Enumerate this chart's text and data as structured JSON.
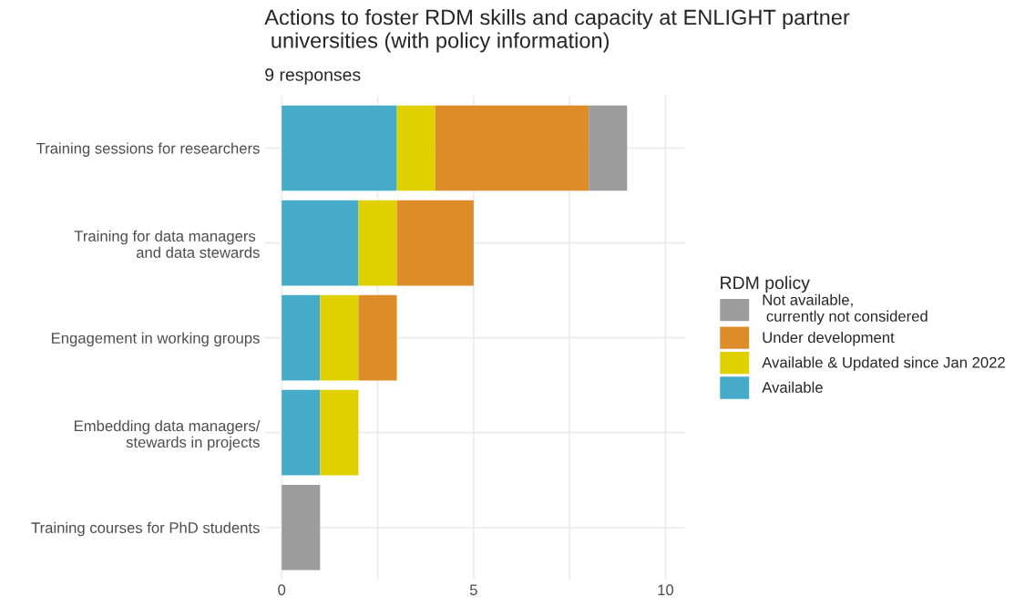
{
  "chart_data": {
    "type": "bar",
    "orientation": "horizontal",
    "stacked": true,
    "title": "Actions to foster RDM skills and capacity at ENLIGHT partner\n universities (with policy information)",
    "subtitle": "9 responses",
    "legend_title": "RDM policy",
    "categories": [
      "Training sessions for researchers",
      "Training for data managers \nand data stewards",
      "Engagement in working groups",
      "Embedding data managers/\nstewards in projects",
      "Training courses for PhD students"
    ],
    "series": [
      {
        "name": "Available",
        "color": "#46abc8",
        "values": [
          3,
          2,
          1,
          1,
          0
        ]
      },
      {
        "name": "Available & Updated since Jan 2022",
        "color": "#e1d000",
        "values": [
          1,
          1,
          1,
          1,
          0
        ]
      },
      {
        "name": "Under development",
        "color": "#dc8c28",
        "values": [
          4,
          2,
          1,
          0,
          0
        ]
      },
      {
        "name": "Not available,\n currently not considered",
        "color": "#9c9c9c",
        "values": [
          1,
          0,
          0,
          0,
          1
        ]
      }
    ],
    "xlim": [
      -0.45,
      10.5
    ],
    "xticks": [
      0,
      {
        "value": 2.5,
        "label": null
      },
      5,
      {
        "value": 7.5,
        "label": null
      },
      10
    ],
    "grid": true,
    "legend": "right"
  }
}
